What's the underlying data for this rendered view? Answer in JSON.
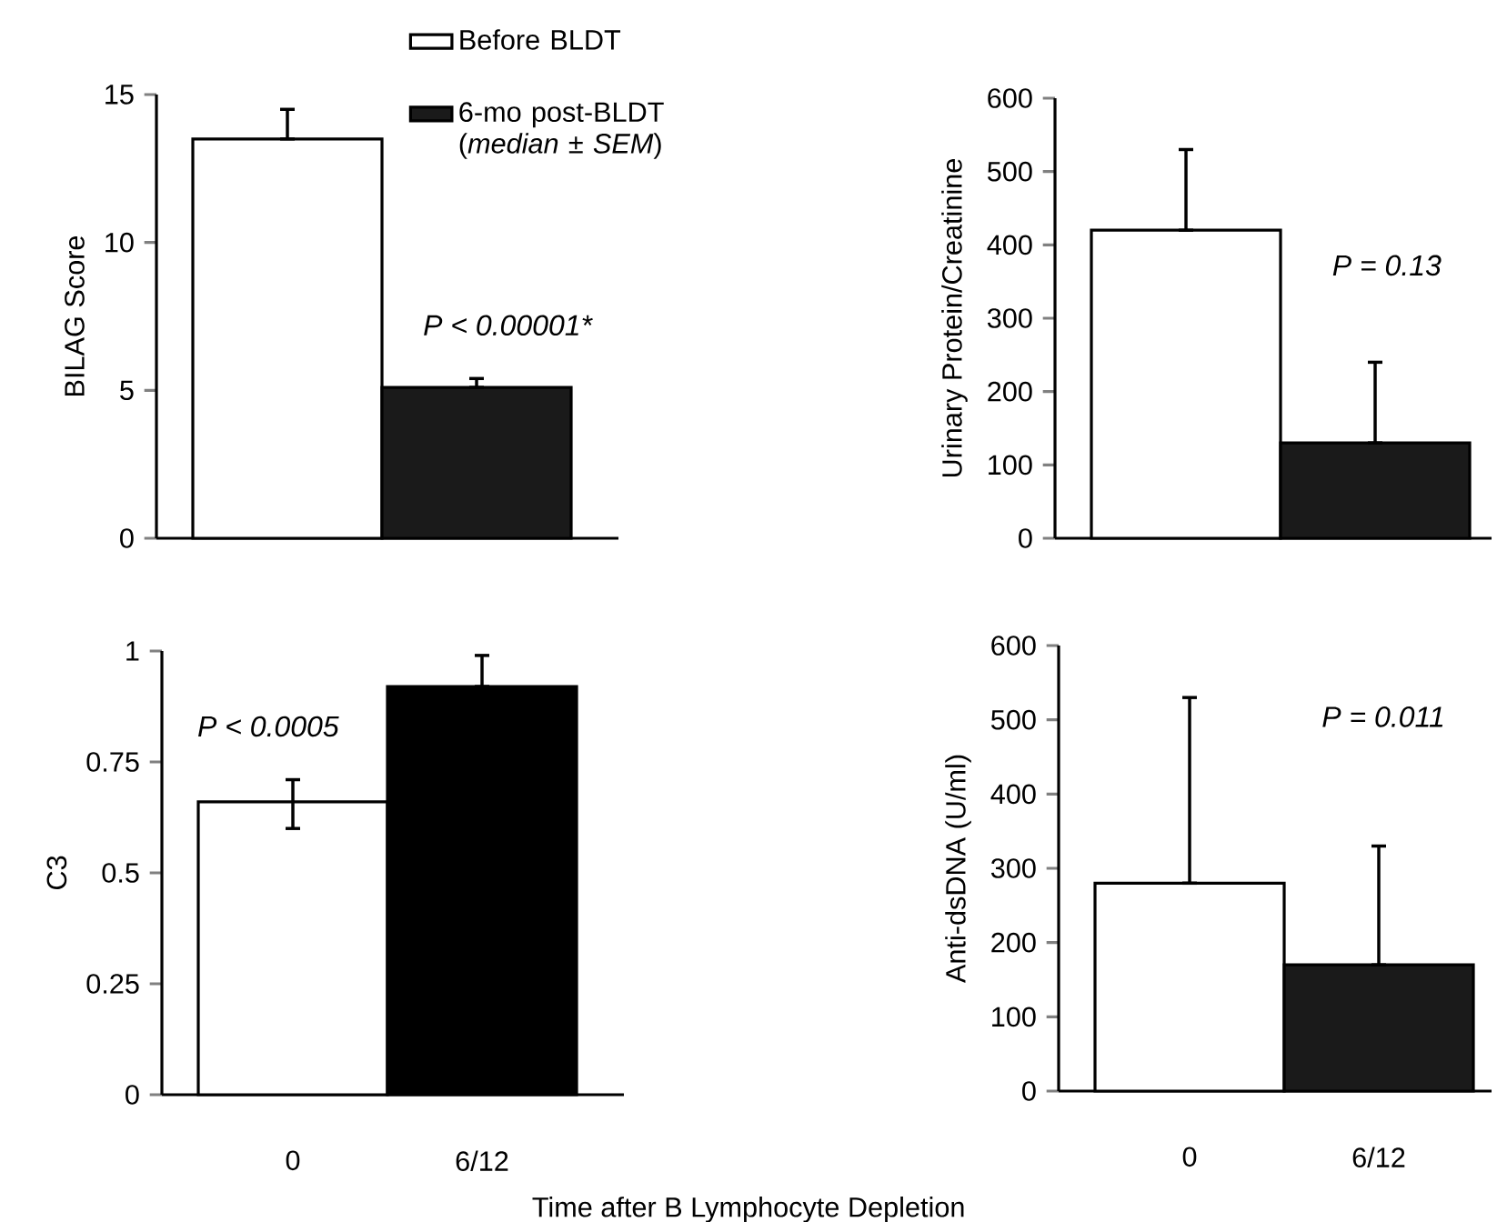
{
  "chart_data": [
    {
      "type": "bar",
      "ylabel": "BILAG Score",
      "categories": [
        null,
        null
      ],
      "ylim": [
        0,
        15
      ],
      "yticks": [
        0,
        5,
        10,
        15
      ],
      "legend": "top right",
      "annotations": [
        "P < 0.00001*"
      ],
      "series": [
        {
          "name": "Before BLDT",
          "color": "#ffffff",
          "values": [
            13.5,
            null
          ],
          "errors": [
            [
              13.5,
              14.5
            ],
            null
          ]
        },
        {
          "name": "6-mo post-BLDT (*median* ± *SEM*)",
          "color": "#1a1a1a",
          "values": [
            null,
            5.1
          ],
          "errors": [
            null,
            [
              5.1,
              5.4
            ]
          ]
        }
      ]
    },
    {
      "type": "bar",
      "ylabel": "Urinary Protein/Creatinine",
      "categories": [
        null,
        null
      ],
      "ylim": [
        0,
        600
      ],
      "yticks": [
        0,
        100,
        200,
        300,
        400,
        500,
        600
      ],
      "annotations": [
        "P = 0.13"
      ],
      "series": [
        {
          "color": "#ffffff",
          "values": [
            420,
            null
          ],
          "errors": [
            [
              420,
              530
            ],
            null
          ]
        },
        {
          "color": "#1a1a1a",
          "values": [
            null,
            130
          ],
          "errors": [
            null,
            [
              130,
              240
            ]
          ]
        }
      ]
    },
    {
      "type": "bar",
      "ylabel": "C3",
      "xlabel": "Time after B Lymphocyte Depletion",
      "categories": [
        "0",
        "6/12"
      ],
      "ylim": [
        0,
        1
      ],
      "yticks": [
        0,
        0.25,
        0.5,
        0.75,
        1
      ],
      "annotations": [
        "P < 0.0005"
      ],
      "series": [
        {
          "color": "#ffffff",
          "values": [
            0.66,
            null
          ],
          "errors": [
            [
              0.6,
              0.71
            ],
            null
          ]
        },
        {
          "color": "#000000",
          "values": [
            null,
            0.92
          ],
          "errors": [
            null,
            [
              0.92,
              0.99
            ]
          ]
        }
      ]
    },
    {
      "type": "bar",
      "ylabel": "Anti-dsDNA (U/ml)",
      "categories": [
        "0",
        "6/12"
      ],
      "ylim": [
        0,
        600
      ],
      "yticks": [
        0,
        100,
        200,
        300,
        400,
        500,
        600
      ],
      "annotations": [
        "P = 0.011"
      ],
      "series": [
        {
          "color": "#ffffff",
          "values": [
            280,
            null
          ],
          "errors": [
            [
              280,
              530
            ],
            null
          ]
        },
        {
          "color": "#1a1a1a",
          "values": [
            null,
            170
          ],
          "errors": [
            null,
            [
              170,
              330
            ]
          ]
        }
      ]
    }
  ]
}
